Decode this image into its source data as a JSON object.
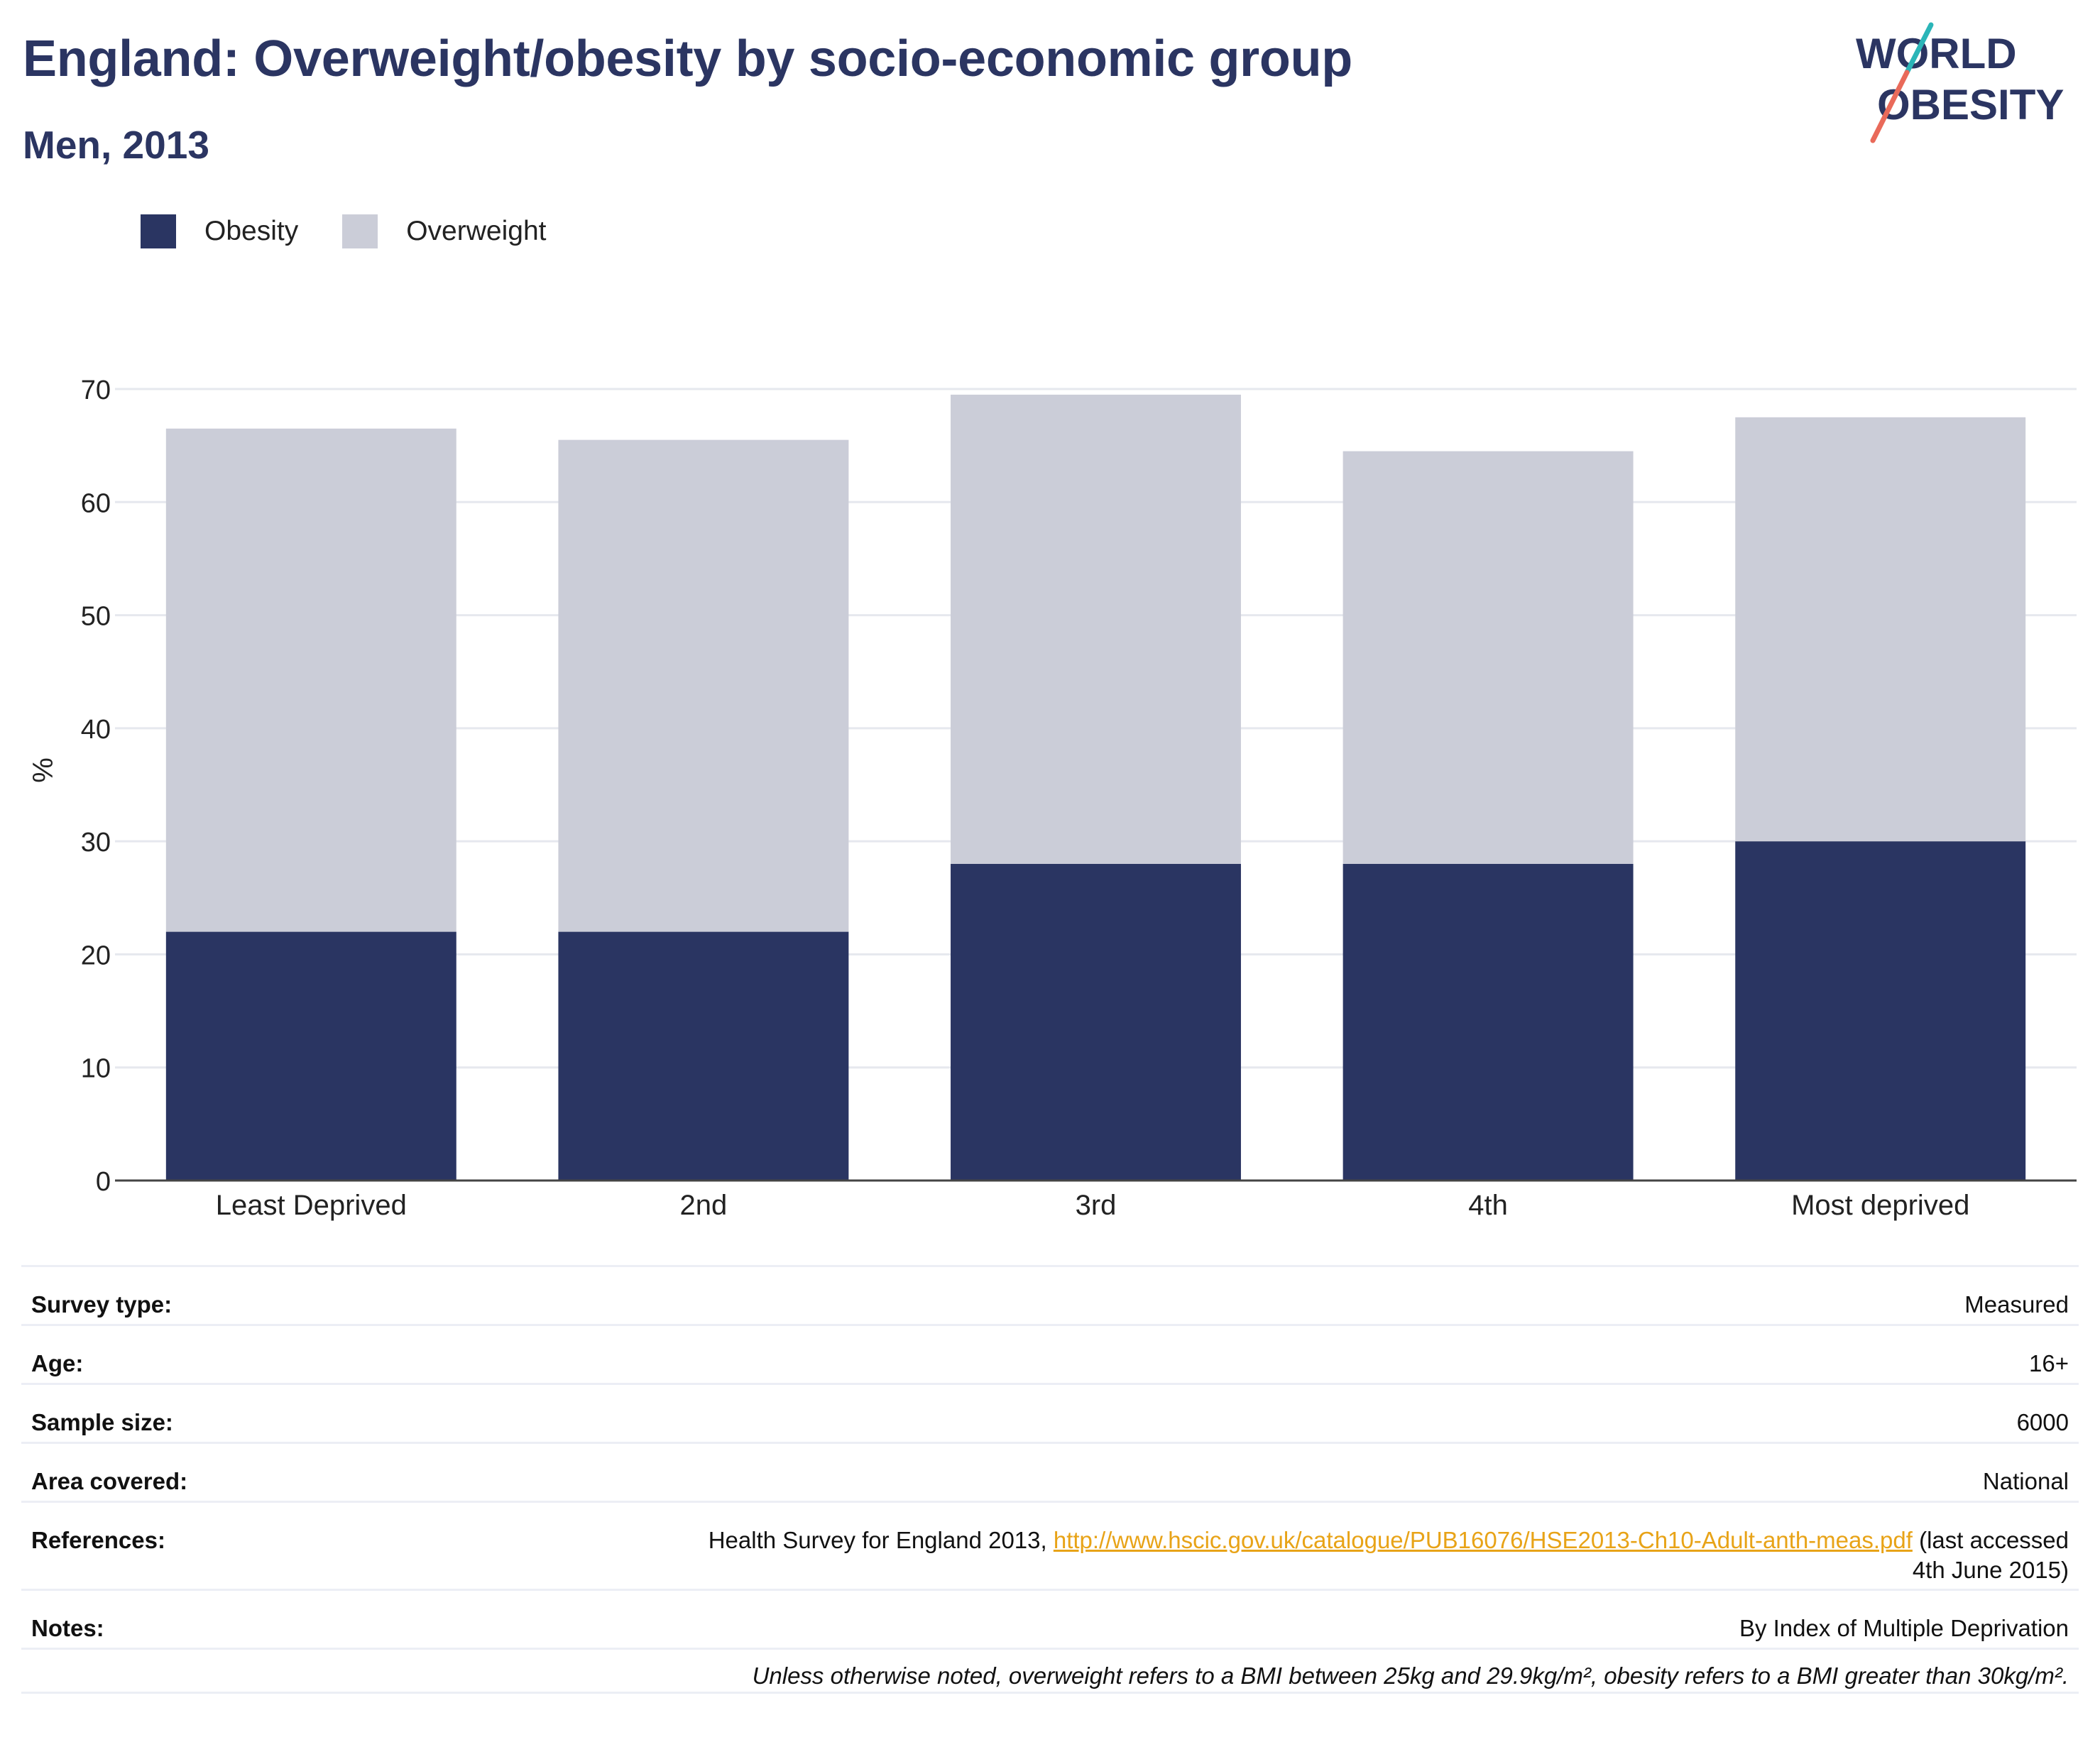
{
  "title": "England: Overweight/obesity by socio-economic group",
  "subtitle": "Men, 2013",
  "logo": {
    "line1": "WORLD",
    "line2": "OBESITY"
  },
  "colors": {
    "obesity": "#2a3562",
    "overweight": "#cbcdd8",
    "accent": "#e8a317",
    "logo_teal": "#2bb5b8",
    "logo_coral": "#e96a5a"
  },
  "legend": [
    {
      "label": "Obesity",
      "color": "#2a3562"
    },
    {
      "label": "Overweight",
      "color": "#cbcdd8"
    }
  ],
  "chart_data": {
    "type": "bar",
    "stacked": true,
    "categories": [
      "Least Deprived",
      "2nd",
      "3rd",
      "4th",
      "Most deprived"
    ],
    "series": [
      {
        "name": "Obesity",
        "values": [
          22,
          22,
          28,
          28,
          30
        ]
      },
      {
        "name": "Overweight",
        "values": [
          44.5,
          43.5,
          41.5,
          36.5,
          37.5
        ]
      }
    ],
    "ylabel": "%",
    "ylim": [
      0,
      70
    ],
    "yticks": [
      0,
      10,
      20,
      30,
      40,
      50,
      60,
      70
    ],
    "grid": true,
    "legend_position": "top-left"
  },
  "info": {
    "survey_type": {
      "label": "Survey type:",
      "value": "Measured"
    },
    "age": {
      "label": "Age:",
      "value": "16+"
    },
    "sample_size": {
      "label": "Sample size:",
      "value": "6000"
    },
    "area": {
      "label": "Area covered:",
      "value": "National"
    },
    "references": {
      "label": "References:",
      "text_before": "Health Survey for England 2013, ",
      "link": "http://www.hscic.gov.uk/catalogue/PUB16076/HSE2013-Ch10-Adult-anth-meas.pdf",
      "text_after": " (last accessed",
      "text_line2": "4th June 2015)"
    },
    "notes": {
      "label": "Notes:",
      "value": "By Index of Multiple Deprivation"
    },
    "footnote": "Unless otherwise noted, overweight refers to a BMI between 25kg and 29.9kg/m², obesity refers to a BMI greater than 30kg/m²."
  }
}
